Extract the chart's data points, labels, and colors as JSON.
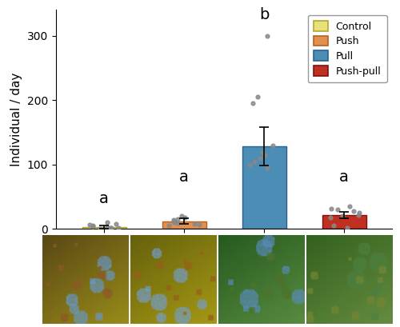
{
  "categories": [
    "Control",
    "Push",
    "Pull",
    "Push-pull"
  ],
  "means": [
    3,
    12,
    128,
    22
  ],
  "sems": [
    2.5,
    4,
    30,
    5
  ],
  "bar_colors": [
    "#e8e07a",
    "#e09050",
    "#4b8db5",
    "#c03020"
  ],
  "bar_edgecolors": [
    "#b0a830",
    "#b86020",
    "#2a6090",
    "#801010"
  ],
  "letters": [
    "a",
    "a",
    "b",
    "a"
  ],
  "scatter_points": {
    "Control": [
      0,
      1,
      2,
      3,
      4,
      5,
      6,
      8,
      10,
      2
    ],
    "Push": [
      5,
      7,
      8,
      10,
      12,
      14,
      15,
      18,
      20,
      9
    ],
    "Pull": [
      300,
      195,
      205,
      110,
      120,
      130,
      105,
      115,
      95,
      100
    ],
    "Push-pull": [
      2,
      5,
      18,
      22,
      25,
      28,
      30,
      32,
      35,
      20
    ]
  },
  "ylabel": "Individual / day",
  "ylim": [
    0,
    340
  ],
  "yticks": [
    0,
    100,
    200,
    300
  ],
  "legend_labels": [
    "Control",
    "Push",
    "Pull",
    "Push-pull"
  ],
  "legend_colors": [
    "#e8e07a",
    "#e09050",
    "#4b8db5",
    "#c03020"
  ],
  "legend_edgecolors": [
    "#b0a830",
    "#b86020",
    "#2a6090",
    "#801010"
  ],
  "axis_fontsize": 11,
  "tick_fontsize": 10,
  "letter_fontsize": 14,
  "scatter_color": "#888888",
  "scatter_size": 12,
  "bar_width": 0.55,
  "figsize": [
    5.0,
    4.09
  ],
  "dpi": 100,
  "img_colors": [
    {
      "sky": [
        0.4,
        0.6,
        0.8
      ],
      "leaf_dark": [
        0.35,
        0.28,
        0.08
      ],
      "leaf_light": [
        0.6,
        0.55,
        0.1
      ],
      "seed": [
        0.55,
        0.35,
        0.15
      ]
    },
    {
      "sky": [
        0.45,
        0.62,
        0.82
      ],
      "leaf_dark": [
        0.4,
        0.38,
        0.05
      ],
      "leaf_light": [
        0.65,
        0.6,
        0.08
      ],
      "seed": [
        0.58,
        0.38,
        0.1
      ]
    },
    {
      "sky": [
        0.35,
        0.55,
        0.75
      ],
      "leaf_dark": [
        0.15,
        0.35,
        0.12
      ],
      "leaf_light": [
        0.35,
        0.55,
        0.25
      ],
      "seed": [
        0.3,
        0.45,
        0.18
      ]
    },
    {
      "sky": [
        0.3,
        0.5,
        0.25
      ],
      "leaf_dark": [
        0.2,
        0.38,
        0.12
      ],
      "leaf_light": [
        0.4,
        0.55,
        0.25
      ],
      "seed": [
        0.45,
        0.52,
        0.2
      ]
    }
  ]
}
